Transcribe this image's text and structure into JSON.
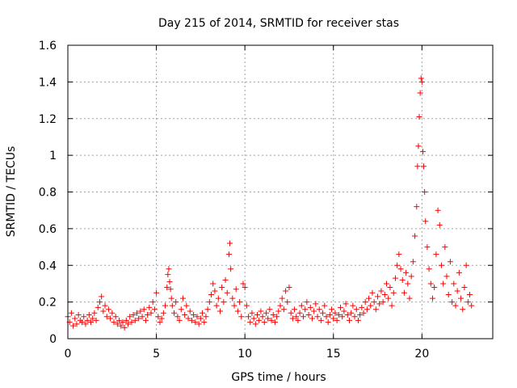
{
  "chart_data": {
    "type": "scatter",
    "title": "Day 215 of 2014, SRMTID for receiver stas",
    "xlabel": "GPS time / hours",
    "ylabel": "SRMTID / TECUs",
    "xlim": [
      0,
      24
    ],
    "ylim": [
      0,
      1.6
    ],
    "x_ticks": [
      0,
      5,
      10,
      15,
      20
    ],
    "x_tick_labels": [
      "0",
      "5",
      "10",
      "15",
      "20"
    ],
    "y_ticks": [
      0,
      0.2,
      0.4,
      0.6,
      0.8,
      1.0,
      1.2,
      1.4,
      1.6
    ],
    "y_tick_labels": [
      "0",
      "0.2",
      "0.4",
      "0.6",
      "0.8",
      "1",
      "1.2",
      "1.4",
      "1.6"
    ],
    "grid": true,
    "marker": "plus",
    "color": "#ff0000",
    "series": [
      {
        "name": "SRMTID",
        "points": [
          [
            0.0,
            0.12
          ],
          [
            0.1,
            0.09
          ],
          [
            0.2,
            0.14
          ],
          [
            0.3,
            0.07
          ],
          [
            0.4,
            0.11
          ],
          [
            0.5,
            0.08
          ],
          [
            0.6,
            0.13
          ],
          [
            0.7,
            0.1
          ],
          [
            0.8,
            0.09
          ],
          [
            0.9,
            0.12
          ],
          [
            1.0,
            0.08
          ],
          [
            1.1,
            0.1
          ],
          [
            1.2,
            0.13
          ],
          [
            1.3,
            0.09
          ],
          [
            1.4,
            0.11
          ],
          [
            1.5,
            0.14
          ],
          [
            1.6,
            0.1
          ],
          [
            1.7,
            0.17
          ],
          [
            1.8,
            0.2
          ],
          [
            1.9,
            0.23
          ],
          [
            2.0,
            0.15
          ],
          [
            2.1,
            0.18
          ],
          [
            2.2,
            0.12
          ],
          [
            2.3,
            0.16
          ],
          [
            2.4,
            0.11
          ],
          [
            2.5,
            0.14
          ],
          [
            2.6,
            0.09
          ],
          [
            2.7,
            0.12
          ],
          [
            2.8,
            0.08
          ],
          [
            2.9,
            0.1
          ],
          [
            3.0,
            0.07
          ],
          [
            3.1,
            0.09
          ],
          [
            3.2,
            0.06
          ],
          [
            3.3,
            0.1
          ],
          [
            3.4,
            0.08
          ],
          [
            3.5,
            0.12
          ],
          [
            3.6,
            0.09
          ],
          [
            3.7,
            0.13
          ],
          [
            3.8,
            0.1
          ],
          [
            3.9,
            0.14
          ],
          [
            4.0,
            0.11
          ],
          [
            4.1,
            0.15
          ],
          [
            4.2,
            0.12
          ],
          [
            4.3,
            0.16
          ],
          [
            4.4,
            0.1
          ],
          [
            4.5,
            0.13
          ],
          [
            4.6,
            0.17
          ],
          [
            4.7,
            0.14
          ],
          [
            4.8,
            0.2
          ],
          [
            4.9,
            0.16
          ],
          [
            5.0,
            0.25
          ],
          [
            5.1,
            0.12
          ],
          [
            5.2,
            0.09
          ],
          [
            5.3,
            0.11
          ],
          [
            5.4,
            0.14
          ],
          [
            5.5,
            0.18
          ],
          [
            5.6,
            0.28
          ],
          [
            5.65,
            0.35
          ],
          [
            5.7,
            0.38
          ],
          [
            5.75,
            0.31
          ],
          [
            5.8,
            0.27
          ],
          [
            5.85,
            0.22
          ],
          [
            5.9,
            0.18
          ],
          [
            6.0,
            0.14
          ],
          [
            6.1,
            0.2
          ],
          [
            6.2,
            0.12
          ],
          [
            6.3,
            0.1
          ],
          [
            6.4,
            0.16
          ],
          [
            6.5,
            0.22
          ],
          [
            6.6,
            0.13
          ],
          [
            6.7,
            0.18
          ],
          [
            6.8,
            0.11
          ],
          [
            6.9,
            0.15
          ],
          [
            7.0,
            0.1
          ],
          [
            7.1,
            0.13
          ],
          [
            7.2,
            0.09
          ],
          [
            7.3,
            0.12
          ],
          [
            7.4,
            0.08
          ],
          [
            7.5,
            0.11
          ],
          [
            7.6,
            0.14
          ],
          [
            7.7,
            0.09
          ],
          [
            7.8,
            0.12
          ],
          [
            7.9,
            0.16
          ],
          [
            8.0,
            0.2
          ],
          [
            8.1,
            0.24
          ],
          [
            8.2,
            0.3
          ],
          [
            8.3,
            0.26
          ],
          [
            8.4,
            0.18
          ],
          [
            8.5,
            0.22
          ],
          [
            8.6,
            0.15
          ],
          [
            8.7,
            0.28
          ],
          [
            8.8,
            0.2
          ],
          [
            8.9,
            0.32
          ],
          [
            9.0,
            0.25
          ],
          [
            9.1,
            0.46
          ],
          [
            9.15,
            0.52
          ],
          [
            9.2,
            0.38
          ],
          [
            9.3,
            0.22
          ],
          [
            9.4,
            0.18
          ],
          [
            9.5,
            0.27
          ],
          [
            9.6,
            0.15
          ],
          [
            9.7,
            0.2
          ],
          [
            9.8,
            0.12
          ],
          [
            9.9,
            0.3
          ],
          [
            10.0,
            0.28
          ],
          [
            10.1,
            0.18
          ],
          [
            10.2,
            0.12
          ],
          [
            10.3,
            0.09
          ],
          [
            10.4,
            0.14
          ],
          [
            10.5,
            0.11
          ],
          [
            10.6,
            0.08
          ],
          [
            10.7,
            0.13
          ],
          [
            10.8,
            0.1
          ],
          [
            10.9,
            0.15
          ],
          [
            11.0,
            0.12
          ],
          [
            11.1,
            0.09
          ],
          [
            11.2,
            0.14
          ],
          [
            11.3,
            0.11
          ],
          [
            11.4,
            0.16
          ],
          [
            11.5,
            0.1
          ],
          [
            11.6,
            0.13
          ],
          [
            11.7,
            0.09
          ],
          [
            11.8,
            0.12
          ],
          [
            11.9,
            0.15
          ],
          [
            12.0,
            0.18
          ],
          [
            12.1,
            0.22
          ],
          [
            12.2,
            0.16
          ],
          [
            12.3,
            0.26
          ],
          [
            12.4,
            0.2
          ],
          [
            12.5,
            0.28
          ],
          [
            12.6,
            0.14
          ],
          [
            12.7,
            0.11
          ],
          [
            12.8,
            0.16
          ],
          [
            12.9,
            0.12
          ],
          [
            13.0,
            0.1
          ],
          [
            13.1,
            0.14
          ],
          [
            13.2,
            0.18
          ],
          [
            13.3,
            0.12
          ],
          [
            13.4,
            0.16
          ],
          [
            13.5,
            0.2
          ],
          [
            13.6,
            0.13
          ],
          [
            13.7,
            0.17
          ],
          [
            13.8,
            0.11
          ],
          [
            13.9,
            0.15
          ],
          [
            14.0,
            0.19
          ],
          [
            14.1,
            0.12
          ],
          [
            14.2,
            0.16
          ],
          [
            14.3,
            0.1
          ],
          [
            14.4,
            0.14
          ],
          [
            14.5,
            0.18
          ],
          [
            14.6,
            0.12
          ],
          [
            14.7,
            0.09
          ],
          [
            14.8,
            0.13
          ],
          [
            14.9,
            0.16
          ],
          [
            15.0,
            0.11
          ],
          [
            15.1,
            0.14
          ],
          [
            15.2,
            0.1
          ],
          [
            15.3,
            0.13
          ],
          [
            15.4,
            0.17
          ],
          [
            15.5,
            0.12
          ],
          [
            15.6,
            0.15
          ],
          [
            15.7,
            0.19
          ],
          [
            15.8,
            0.13
          ],
          [
            15.9,
            0.1
          ],
          [
            16.0,
            0.14
          ],
          [
            16.1,
            0.18
          ],
          [
            16.2,
            0.12
          ],
          [
            16.3,
            0.16
          ],
          [
            16.4,
            0.1
          ],
          [
            16.5,
            0.13
          ],
          [
            16.6,
            0.17
          ],
          [
            16.7,
            0.14
          ],
          [
            16.8,
            0.2
          ],
          [
            16.9,
            0.16
          ],
          [
            17.0,
            0.22
          ],
          [
            17.1,
            0.18
          ],
          [
            17.2,
            0.25
          ],
          [
            17.3,
            0.2
          ],
          [
            17.4,
            0.16
          ],
          [
            17.5,
            0.23
          ],
          [
            17.6,
            0.19
          ],
          [
            17.7,
            0.26
          ],
          [
            17.8,
            0.2
          ],
          [
            17.9,
            0.24
          ],
          [
            18.0,
            0.3
          ],
          [
            18.1,
            0.22
          ],
          [
            18.2,
            0.28
          ],
          [
            18.3,
            0.18
          ],
          [
            18.4,
            0.25
          ],
          [
            18.5,
            0.33
          ],
          [
            18.6,
            0.4
          ],
          [
            18.7,
            0.46
          ],
          [
            18.8,
            0.38
          ],
          [
            18.9,
            0.32
          ],
          [
            19.0,
            0.25
          ],
          [
            19.1,
            0.36
          ],
          [
            19.2,
            0.3
          ],
          [
            19.3,
            0.22
          ],
          [
            19.4,
            0.34
          ],
          [
            19.5,
            0.42
          ],
          [
            19.6,
            0.56
          ],
          [
            19.7,
            0.72
          ],
          [
            19.75,
            0.94
          ],
          [
            19.8,
            1.05
          ],
          [
            19.85,
            1.21
          ],
          [
            19.9,
            1.34
          ],
          [
            19.95,
            1.42
          ],
          [
            20.0,
            1.4
          ],
          [
            20.05,
            1.02
          ],
          [
            20.1,
            0.94
          ],
          [
            20.15,
            0.8
          ],
          [
            20.2,
            0.64
          ],
          [
            20.3,
            0.5
          ],
          [
            20.4,
            0.38
          ],
          [
            20.5,
            0.3
          ],
          [
            20.6,
            0.22
          ],
          [
            20.7,
            0.28
          ],
          [
            20.8,
            0.46
          ],
          [
            20.9,
            0.7
          ],
          [
            21.0,
            0.62
          ],
          [
            21.1,
            0.4
          ],
          [
            21.2,
            0.3
          ],
          [
            21.3,
            0.5
          ],
          [
            21.4,
            0.34
          ],
          [
            21.5,
            0.24
          ],
          [
            21.6,
            0.42
          ],
          [
            21.7,
            0.2
          ],
          [
            21.8,
            0.3
          ],
          [
            21.9,
            0.18
          ],
          [
            22.0,
            0.26
          ],
          [
            22.1,
            0.36
          ],
          [
            22.2,
            0.22
          ],
          [
            22.3,
            0.16
          ],
          [
            22.4,
            0.28
          ],
          [
            22.5,
            0.4
          ],
          [
            22.6,
            0.2
          ],
          [
            22.7,
            0.24
          ],
          [
            22.8,
            0.18
          ]
        ]
      }
    ]
  }
}
